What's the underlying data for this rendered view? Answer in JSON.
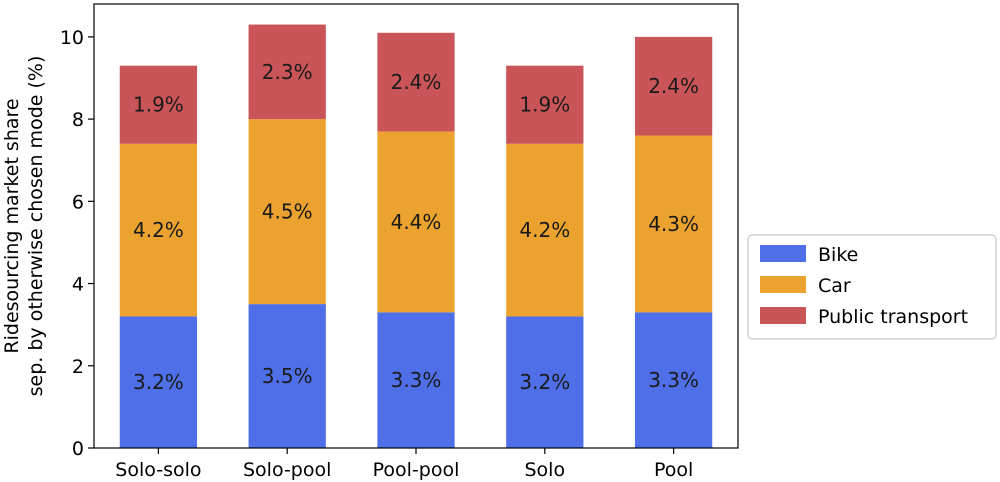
{
  "chart_data": {
    "type": "bar",
    "stacked": true,
    "title": "",
    "xlabel": "",
    "ylabel": "Ridesourcing market share\nsep. by otherwise chosen mode (%)",
    "ylim": [
      0,
      10.8
    ],
    "yticks": [
      0,
      2,
      4,
      6,
      8,
      10
    ],
    "categories": [
      "Solo-solo",
      "Solo-pool",
      "Pool-pool",
      "Solo",
      "Pool"
    ],
    "series": [
      {
        "name": "Bike",
        "color": "#4f6fe8",
        "values": [
          3.2,
          3.5,
          3.3,
          3.2,
          3.3
        ],
        "labels": [
          "3.2%",
          "3.5%",
          "3.3%",
          "3.2%",
          "3.3%"
        ]
      },
      {
        "name": "Car",
        "color": "#eba22f",
        "values": [
          4.2,
          4.5,
          4.4,
          4.2,
          4.3
        ],
        "labels": [
          "4.2%",
          "4.5%",
          "4.4%",
          "4.2%",
          "4.3%"
        ]
      },
      {
        "name": "Public transport",
        "color": "#c95558",
        "values": [
          1.9,
          2.3,
          2.4,
          1.9,
          2.4
        ],
        "labels": [
          "1.9%",
          "2.3%",
          "2.4%",
          "1.9%",
          "2.4%"
        ]
      }
    ],
    "grid": false,
    "legend_position": "right-outside"
  }
}
